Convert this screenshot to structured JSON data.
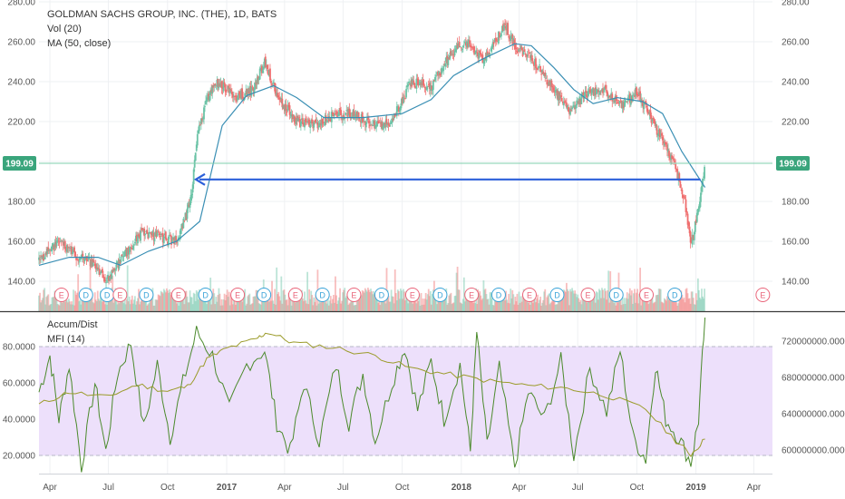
{
  "header": {
    "symbol_line": "GOLDMAN SACHS GROUP, INC. (THE), 1D, BATS",
    "vol_label": "Vol (20)",
    "ma_label": "MA (50, close)"
  },
  "lower_legend": {
    "ad_label": "Accum/Dist",
    "mfi_label": "MFI (14)"
  },
  "colors": {
    "up": "#6bc3a6",
    "down": "#ef6e6e",
    "ma": "#3a8fb4",
    "arrow": "#2b5fd9",
    "price_line": "#7fcfae",
    "price_tag": "#3aa57c",
    "mfi": "#4b8a2c",
    "ad": "#9b9b2a",
    "band": "#ede0fb",
    "earnings": "#e9657a",
    "dividend": "#39a3d8"
  },
  "current_price": {
    "value": 199.09,
    "label": "199.09"
  },
  "annotation": {
    "type": "arrow",
    "from_date": "2019-01-08",
    "to_date": "2016-11-14",
    "price": 191
  },
  "chart_data": [
    {
      "type": "candlestick",
      "title": "GOLDMAN SACHS GROUP, INC. (THE), 1D, BATS",
      "x_range": [
        "2016-03-15",
        "2019-04-30"
      ],
      "ylim": [
        128,
        280
      ],
      "y_ticks": [
        140,
        160,
        180,
        200,
        220,
        240,
        260,
        280
      ],
      "y_tick_labels": [
        "140.00",
        "160.00",
        "180.00",
        "200.00",
        "220.00",
        "240.00",
        "260.00",
        "280.00"
      ],
      "x_tick_labels": [
        "Apr",
        "Jul",
        "Oct",
        "2017",
        "Apr",
        "Jul",
        "Oct",
        "2018",
        "Apr",
        "Jul",
        "Oct",
        "2019",
        "Apr"
      ],
      "grid": true,
      "price_path": [
        [
          "2016-03-15",
          150
        ],
        [
          "2016-04-15",
          160
        ],
        [
          "2016-05-10",
          153
        ],
        [
          "2016-06-10",
          148
        ],
        [
          "2016-06-27",
          140
        ],
        [
          "2016-07-20",
          150
        ],
        [
          "2016-08-20",
          164
        ],
        [
          "2016-09-20",
          162
        ],
        [
          "2016-10-15",
          160
        ],
        [
          "2016-10-31",
          174
        ],
        [
          "2016-11-09",
          188
        ],
        [
          "2016-11-16",
          212
        ],
        [
          "2016-12-01",
          232
        ],
        [
          "2016-12-20",
          240
        ],
        [
          "2017-01-15",
          232
        ],
        [
          "2017-02-10",
          236
        ],
        [
          "2017-03-01",
          250
        ],
        [
          "2017-03-20",
          233
        ],
        [
          "2017-04-20",
          220
        ],
        [
          "2017-05-20",
          218
        ],
        [
          "2017-06-15",
          223
        ],
        [
          "2017-07-15",
          224
        ],
        [
          "2017-08-20",
          218
        ],
        [
          "2017-09-15",
          220
        ],
        [
          "2017-10-15",
          240
        ],
        [
          "2017-11-15",
          237
        ],
        [
          "2017-12-15",
          254
        ],
        [
          "2018-01-10",
          260
        ],
        [
          "2018-02-05",
          250
        ],
        [
          "2018-03-10",
          268
        ],
        [
          "2018-03-25",
          258
        ],
        [
          "2018-04-25",
          250
        ],
        [
          "2018-05-20",
          238
        ],
        [
          "2018-06-20",
          225
        ],
        [
          "2018-07-15",
          234
        ],
        [
          "2018-08-10",
          236
        ],
        [
          "2018-09-10",
          228
        ],
        [
          "2018-10-01",
          235
        ],
        [
          "2018-10-20",
          224
        ],
        [
          "2018-11-10",
          210
        ],
        [
          "2018-12-01",
          196
        ],
        [
          "2018-12-15",
          180
        ],
        [
          "2018-12-24",
          157
        ],
        [
          "2019-01-05",
          176
        ],
        [
          "2019-01-15",
          198
        ]
      ],
      "ma50": [
        [
          "2016-03-15",
          148
        ],
        [
          "2016-05-01",
          152
        ],
        [
          "2016-06-15",
          152
        ],
        [
          "2016-07-20",
          148
        ],
        [
          "2016-09-01",
          155
        ],
        [
          "2016-10-15",
          160
        ],
        [
          "2016-11-20",
          170
        ],
        [
          "2016-12-25",
          218
        ],
        [
          "2017-02-01",
          233
        ],
        [
          "2017-03-15",
          238
        ],
        [
          "2017-04-20",
          232
        ],
        [
          "2017-06-01",
          222
        ],
        [
          "2017-08-01",
          222
        ],
        [
          "2017-10-01",
          224
        ],
        [
          "2017-11-15",
          231
        ],
        [
          "2017-12-20",
          243
        ],
        [
          "2018-02-01",
          251
        ],
        [
          "2018-03-25",
          259
        ],
        [
          "2018-04-20",
          258
        ],
        [
          "2018-05-25",
          247
        ],
        [
          "2018-06-25",
          236
        ],
        [
          "2018-07-25",
          229
        ],
        [
          "2018-09-01",
          232
        ],
        [
          "2018-10-10",
          230
        ],
        [
          "2018-11-10",
          224
        ],
        [
          "2018-12-10",
          205
        ],
        [
          "2019-01-15",
          187
        ]
      ],
      "events": [
        {
          "label": "E",
          "date": "2016-04-19"
        },
        {
          "label": "D",
          "date": "2016-05-27"
        },
        {
          "label": "D",
          "date": "2016-06-29"
        },
        {
          "label": "E",
          "date": "2016-07-19"
        },
        {
          "label": "D",
          "date": "2016-08-29"
        },
        {
          "label": "E",
          "date": "2016-10-18"
        },
        {
          "label": "D",
          "date": "2016-11-29"
        },
        {
          "label": "E",
          "date": "2017-01-18"
        },
        {
          "label": "D",
          "date": "2017-02-28"
        },
        {
          "label": "E",
          "date": "2017-04-18"
        },
        {
          "label": "D",
          "date": "2017-05-30"
        },
        {
          "label": "E",
          "date": "2017-07-18"
        },
        {
          "label": "D",
          "date": "2017-08-30"
        },
        {
          "label": "E",
          "date": "2017-10-17"
        },
        {
          "label": "D",
          "date": "2017-11-29"
        },
        {
          "label": "E",
          "date": "2018-01-17"
        },
        {
          "label": "D",
          "date": "2018-02-28"
        },
        {
          "label": "E",
          "date": "2018-04-17"
        },
        {
          "label": "D",
          "date": "2018-05-30"
        },
        {
          "label": "E",
          "date": "2018-07-17"
        },
        {
          "label": "D",
          "date": "2018-08-30"
        },
        {
          "label": "E",
          "date": "2018-10-16"
        },
        {
          "label": "D",
          "date": "2018-11-29"
        },
        {
          "label": "E",
          "date": "2019-04-15"
        }
      ]
    },
    {
      "type": "line",
      "series": [
        {
          "name": "MFI (14)",
          "points": [
            [
              "2016-03-15",
              55
            ],
            [
              "2016-04-01",
              75
            ],
            [
              "2016-04-15",
              40
            ],
            [
              "2016-05-01",
              70
            ],
            [
              "2016-05-20",
              14
            ],
            [
              "2016-06-10",
              60
            ],
            [
              "2016-06-27",
              22
            ],
            [
              "2016-07-15",
              65
            ],
            [
              "2016-08-05",
              82
            ],
            [
              "2016-08-25",
              35
            ],
            [
              "2016-09-15",
              70
            ],
            [
              "2016-10-05",
              30
            ],
            [
              "2016-10-25",
              60
            ],
            [
              "2016-11-15",
              88
            ],
            [
              "2016-12-10",
              75
            ],
            [
              "2017-01-05",
              45
            ],
            [
              "2017-02-01",
              70
            ],
            [
              "2017-03-01",
              78
            ],
            [
              "2017-03-20",
              38
            ],
            [
              "2017-04-10",
              22
            ],
            [
              "2017-05-01",
              60
            ],
            [
              "2017-05-25",
              28
            ],
            [
              "2017-06-20",
              70
            ],
            [
              "2017-07-10",
              38
            ],
            [
              "2017-08-01",
              65
            ],
            [
              "2017-08-20",
              28
            ],
            [
              "2017-09-15",
              60
            ],
            [
              "2017-10-05",
              80
            ],
            [
              "2017-10-25",
              45
            ],
            [
              "2017-11-15",
              72
            ],
            [
              "2017-12-05",
              40
            ],
            [
              "2017-12-30",
              70
            ],
            [
              "2018-01-15",
              22
            ],
            [
              "2018-01-25",
              88
            ],
            [
              "2018-02-10",
              25
            ],
            [
              "2018-03-01",
              68
            ],
            [
              "2018-03-25",
              14
            ],
            [
              "2018-04-15",
              55
            ],
            [
              "2018-05-10",
              40
            ],
            [
              "2018-06-05",
              72
            ],
            [
              "2018-06-25",
              20
            ],
            [
              "2018-07-20",
              68
            ],
            [
              "2018-08-15",
              44
            ],
            [
              "2018-09-05",
              78
            ],
            [
              "2018-09-25",
              30
            ],
            [
              "2018-10-15",
              18
            ],
            [
              "2018-10-30",
              70
            ],
            [
              "2018-11-15",
              40
            ],
            [
              "2018-12-05",
              30
            ],
            [
              "2018-12-24",
              16
            ],
            [
              "2019-01-05",
              40
            ],
            [
              "2019-01-15",
              96
            ]
          ]
        },
        {
          "name": "Accum/Dist",
          "right_ticks": [
            600000000,
            640000000,
            680000000,
            720000000
          ],
          "right_tick_labels": [
            "600000000.0000",
            "640000000.0000",
            "680000000.0000",
            "720000000.0000"
          ],
          "points": [
            [
              "2016-03-15",
              650000000
            ],
            [
              "2016-05-01",
              664000000
            ],
            [
              "2016-06-27",
              658000000
            ],
            [
              "2016-08-15",
              672000000
            ],
            [
              "2016-10-01",
              665000000
            ],
            [
              "2016-11-01",
              670000000
            ],
            [
              "2016-12-01",
              700000000
            ],
            [
              "2017-01-01",
              712000000
            ],
            [
              "2017-02-15",
              722000000
            ],
            [
              "2017-03-05",
              730000000
            ],
            [
              "2017-04-15",
              718000000
            ],
            [
              "2017-06-15",
              713000000
            ],
            [
              "2017-08-20",
              704000000
            ],
            [
              "2017-10-15",
              690000000
            ],
            [
              "2017-12-15",
              683000000
            ],
            [
              "2018-02-15",
              676000000
            ],
            [
              "2018-04-15",
              671000000
            ],
            [
              "2018-06-15",
              668000000
            ],
            [
              "2018-08-15",
              660000000
            ],
            [
              "2018-10-15",
              645000000
            ],
            [
              "2018-12-01",
              610000000
            ],
            [
              "2018-12-24",
              595000000
            ],
            [
              "2019-01-15",
              612000000
            ]
          ]
        }
      ],
      "y_ticks": [
        20,
        40,
        60,
        80
      ],
      "y_tick_labels": [
        "20.0000",
        "40.0000",
        "60.0000",
        "80.0000"
      ],
      "ylim": [
        10,
        100
      ],
      "band": [
        20,
        80
      ]
    }
  ]
}
